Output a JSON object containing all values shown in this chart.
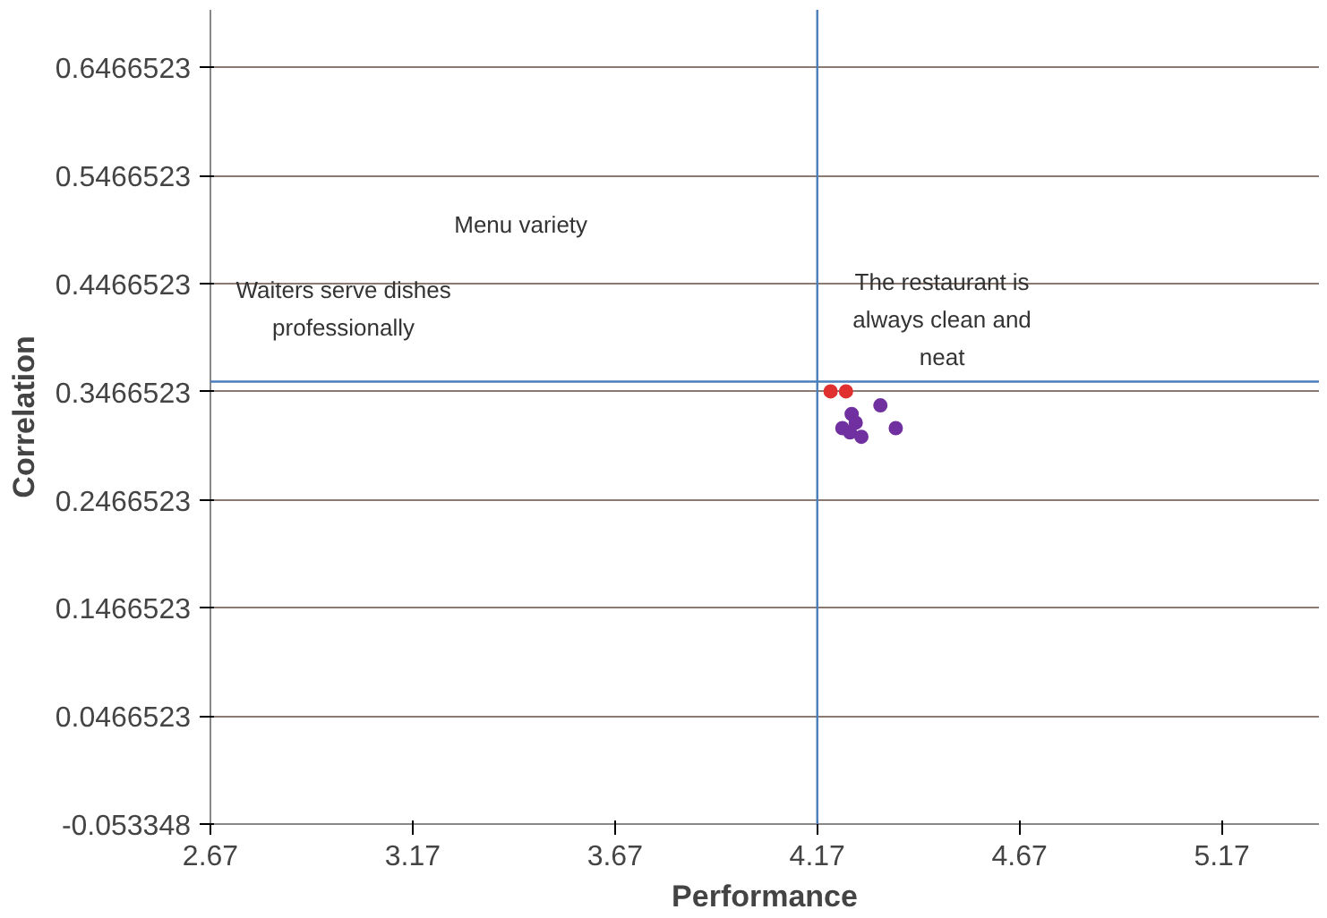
{
  "chart_data": {
    "type": "scatter",
    "xlabel": "Performance",
    "ylabel": "Correlation",
    "series": [
      {
        "color": "#e03030",
        "x": [
          4.203,
          4.241
        ],
        "values": [
          0.347,
          0.347
        ]
      },
      {
        "color": "#7030a0",
        "x": [
          4.255,
          4.326,
          4.364,
          4.251,
          4.279,
          4.232,
          4.265
        ],
        "values": [
          0.326,
          0.334,
          0.313,
          0.309,
          0.305,
          0.313,
          0.318
        ]
      }
    ],
    "xlim": [
      2.67,
      5.41
    ],
    "xticks": [
      2.67,
      3.17,
      3.67,
      4.17,
      4.67,
      5.17
    ],
    "ylim": [
      -0.053348,
      0.7
    ],
    "yticks": [
      -0.053348,
      0.0466523,
      0.1466523,
      0.2466523,
      0.3466523,
      0.4466523,
      0.5466523,
      0.6466523
    ],
    "ref_lines": [
      {
        "axis": "x",
        "value": 4.17,
        "color": "#4a7ebb"
      },
      {
        "axis": "y",
        "value": 0.356,
        "color": "#4a7ebb"
      }
    ],
    "annotations": [
      "Menu variety",
      "Waiters serve dishes professionally",
      "The restaurant is always clean and neat"
    ],
    "grid": "y",
    "marker": "circle"
  }
}
